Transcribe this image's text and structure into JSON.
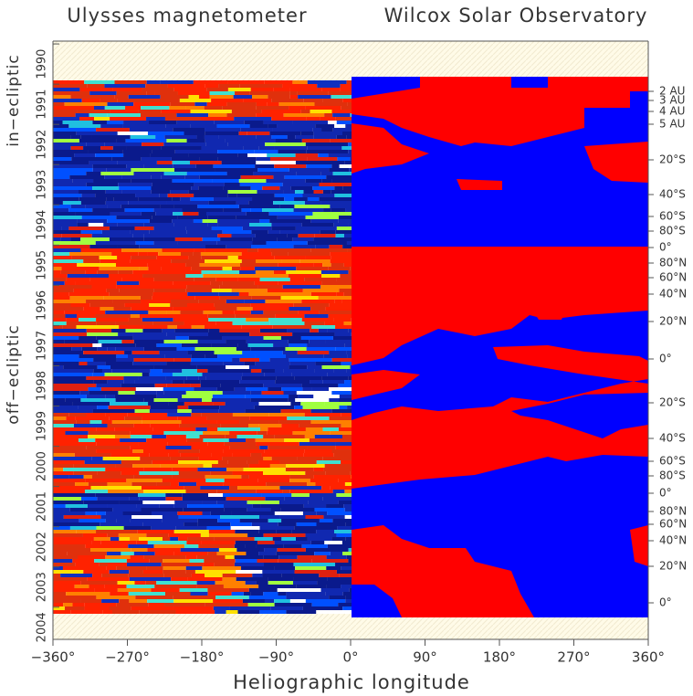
{
  "chart_data": {
    "type": "heatmap",
    "titles": [
      "Ulysses magnetometer",
      "Wilcox Solar Observatory"
    ],
    "x_label": "Heliographic longitude",
    "xlim": [
      -360,
      360
    ],
    "xticks": [
      {
        "value": -360,
        "label": "−360°"
      },
      {
        "value": -270,
        "label": "−270°"
      },
      {
        "value": -180,
        "label": "−180°"
      },
      {
        "value": -90,
        "label": "−90°"
      },
      {
        "value": 0,
        "label": "0°"
      },
      {
        "value": 90,
        "label": "90°"
      },
      {
        "value": 180,
        "label": "180°"
      },
      {
        "value": 270,
        "label": "270°"
      },
      {
        "value": 360,
        "label": "360°"
      }
    ],
    "ylim": [
      1989.93,
      2004.8
    ],
    "yticks": [
      1990,
      1991,
      1992,
      1993,
      1994,
      1995,
      1996,
      1997,
      1998,
      1999,
      2000,
      2001,
      2002,
      2003,
      2004
    ],
    "region_labels": [
      "in−ecliptic",
      "off−ecliptic"
    ],
    "right_labels": [
      "2 AU",
      "3 AU",
      "4 AU",
      "5 AU",
      "20°S",
      "40°S",
      "60°S",
      "80°S",
      "0°",
      "80°N",
      "60°N",
      "40°N",
      "20°N",
      "0°",
      "20°S",
      "40°S",
      "60°S",
      "80°S",
      "0°",
      "80°N",
      "60°N",
      "40°N",
      "20°N",
      "0°"
    ]
  }
}
